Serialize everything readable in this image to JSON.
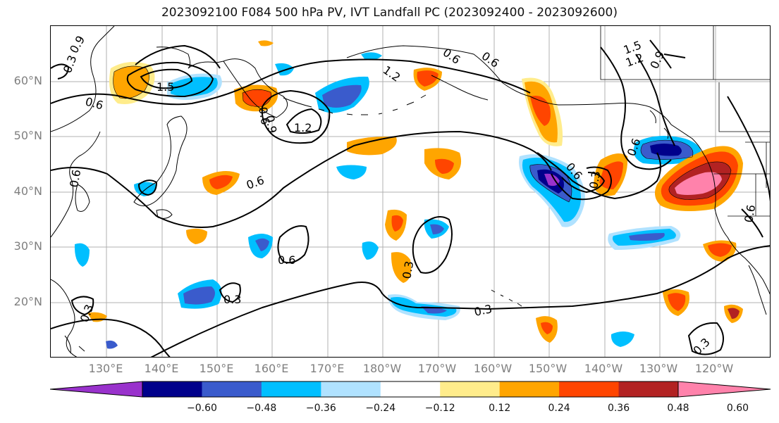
{
  "title": "2023092100 F084 500 hPa PV, IVT Landfall PC (2023092400 - 2023092600)",
  "lat_labels": [
    "60°N",
    "50°N",
    "40°N",
    "30°N",
    "20°N"
  ],
  "lon_labels": [
    "130°E",
    "140°E",
    "150°E",
    "160°E",
    "170°E",
    "180°W",
    "170°W",
    "160°W",
    "150°W",
    "140°W",
    "130°W",
    "120°W"
  ],
  "colorbar": {
    "colors": [
      "#9932CC",
      "#00008B",
      "#3A5BCC",
      "#00BFFF",
      "#B0E2FF",
      "#FFFFFF",
      "#FFEC8B",
      "#FFA500",
      "#FF4500",
      "#B22222",
      "#FF82AB"
    ],
    "tick_labels": [
      "−0.60",
      "−0.48",
      "−0.36",
      "−0.24",
      "−0.12",
      "0.12",
      "0.24",
      "0.36",
      "0.48",
      "0.60"
    ]
  },
  "contour_labels": [
    "0.3",
    "0.6",
    "1.5",
    "0.6",
    "1.2",
    "0.9",
    "1.2",
    "0.6",
    "0.6",
    "1.5",
    "1.2",
    "0.9",
    "0.6",
    "0.6",
    "0.6",
    "0.3",
    "0.3",
    "0.3",
    "0.3",
    "0.3",
    "0.6",
    "0.3",
    "0.6",
    "0.6",
    "0.9"
  ]
}
